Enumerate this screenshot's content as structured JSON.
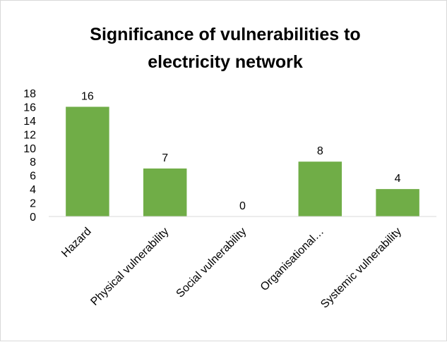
{
  "chart_data": {
    "type": "bar",
    "title_lines": [
      "Significance of vulnerabilities to",
      "electricity network"
    ],
    "categories": [
      "Hazard",
      "Physical vulnerability",
      "Social vulnerability",
      "Organisational…",
      "Systemic vulnerability"
    ],
    "values": [
      16,
      7,
      0,
      8,
      4
    ],
    "data_labels": [
      "16",
      "7",
      "0",
      "8",
      "4"
    ],
    "xlabel": "",
    "ylabel": "",
    "ylim": [
      0,
      18
    ],
    "yticks": [
      0,
      2,
      4,
      6,
      8,
      10,
      12,
      14,
      16,
      18
    ],
    "grid": false,
    "legend": "none",
    "bar_color": "#70ad47"
  }
}
